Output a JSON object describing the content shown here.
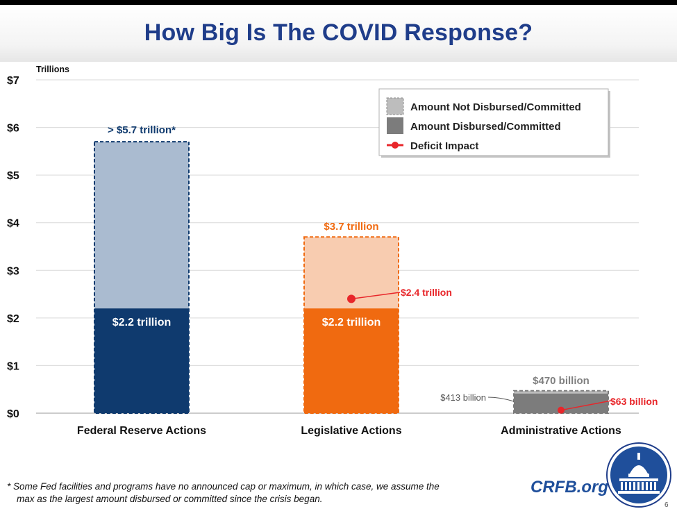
{
  "title": "How Big Is The COVID Response?",
  "colors": {
    "title": "#1f3d8a",
    "fed_dark": "#0f3a6e",
    "fed_light": "#aabbd0",
    "leg_dark": "#f06a10",
    "leg_light": "#f8ccb0",
    "adm_dark": "#7c7c7c",
    "adm_light": "#bdbdbd",
    "deficit": "#e8262a",
    "label_orange": "#f06a10",
    "label_gray": "#808080"
  },
  "chart_data": {
    "type": "bar",
    "ylabel": "Trillions",
    "ylim": [
      0,
      7
    ],
    "yticks": [
      "$0",
      "$1",
      "$2",
      "$3",
      "$4",
      "$5",
      "$6",
      "$7"
    ],
    "categories": [
      "Federal Reserve Actions",
      "Legislative Actions",
      "Administrative Actions"
    ],
    "series": [
      {
        "name": "Amount Disbursed/Committed",
        "values": [
          2.2,
          2.2,
          0.413
        ]
      },
      {
        "name": "Amount Not Disbursed/Committed",
        "values": [
          3.5,
          1.5,
          0.057
        ]
      },
      {
        "name": "Deficit Impact",
        "values": [
          null,
          2.4,
          0.063
        ]
      }
    ],
    "totals": [
      5.7,
      3.7,
      0.47
    ],
    "labels": {
      "fed_total": "> $5.7 trillion*",
      "fed_disbursed": "$2.2 trillion",
      "leg_total": "$3.7 trillion",
      "leg_disbursed": "$2.2 trillion",
      "leg_deficit": "$2.4 trillion",
      "adm_total": "$470 billion",
      "adm_disbursed": "$413 billion",
      "adm_deficit": "$63 billion"
    },
    "legend": {
      "position": "top-right",
      "items": [
        "Amount Not Disbursed/Committed",
        "Amount Disbursed/Committed",
        "Deficit Impact"
      ]
    }
  },
  "footnote": {
    "line1": "* Some Fed facilities and programs have no announced cap or maximum, in which case, we assume the",
    "line2": "max as the largest amount disbursed or committed since the crisis began."
  },
  "brand": "CRFB.org",
  "page_number": "6"
}
